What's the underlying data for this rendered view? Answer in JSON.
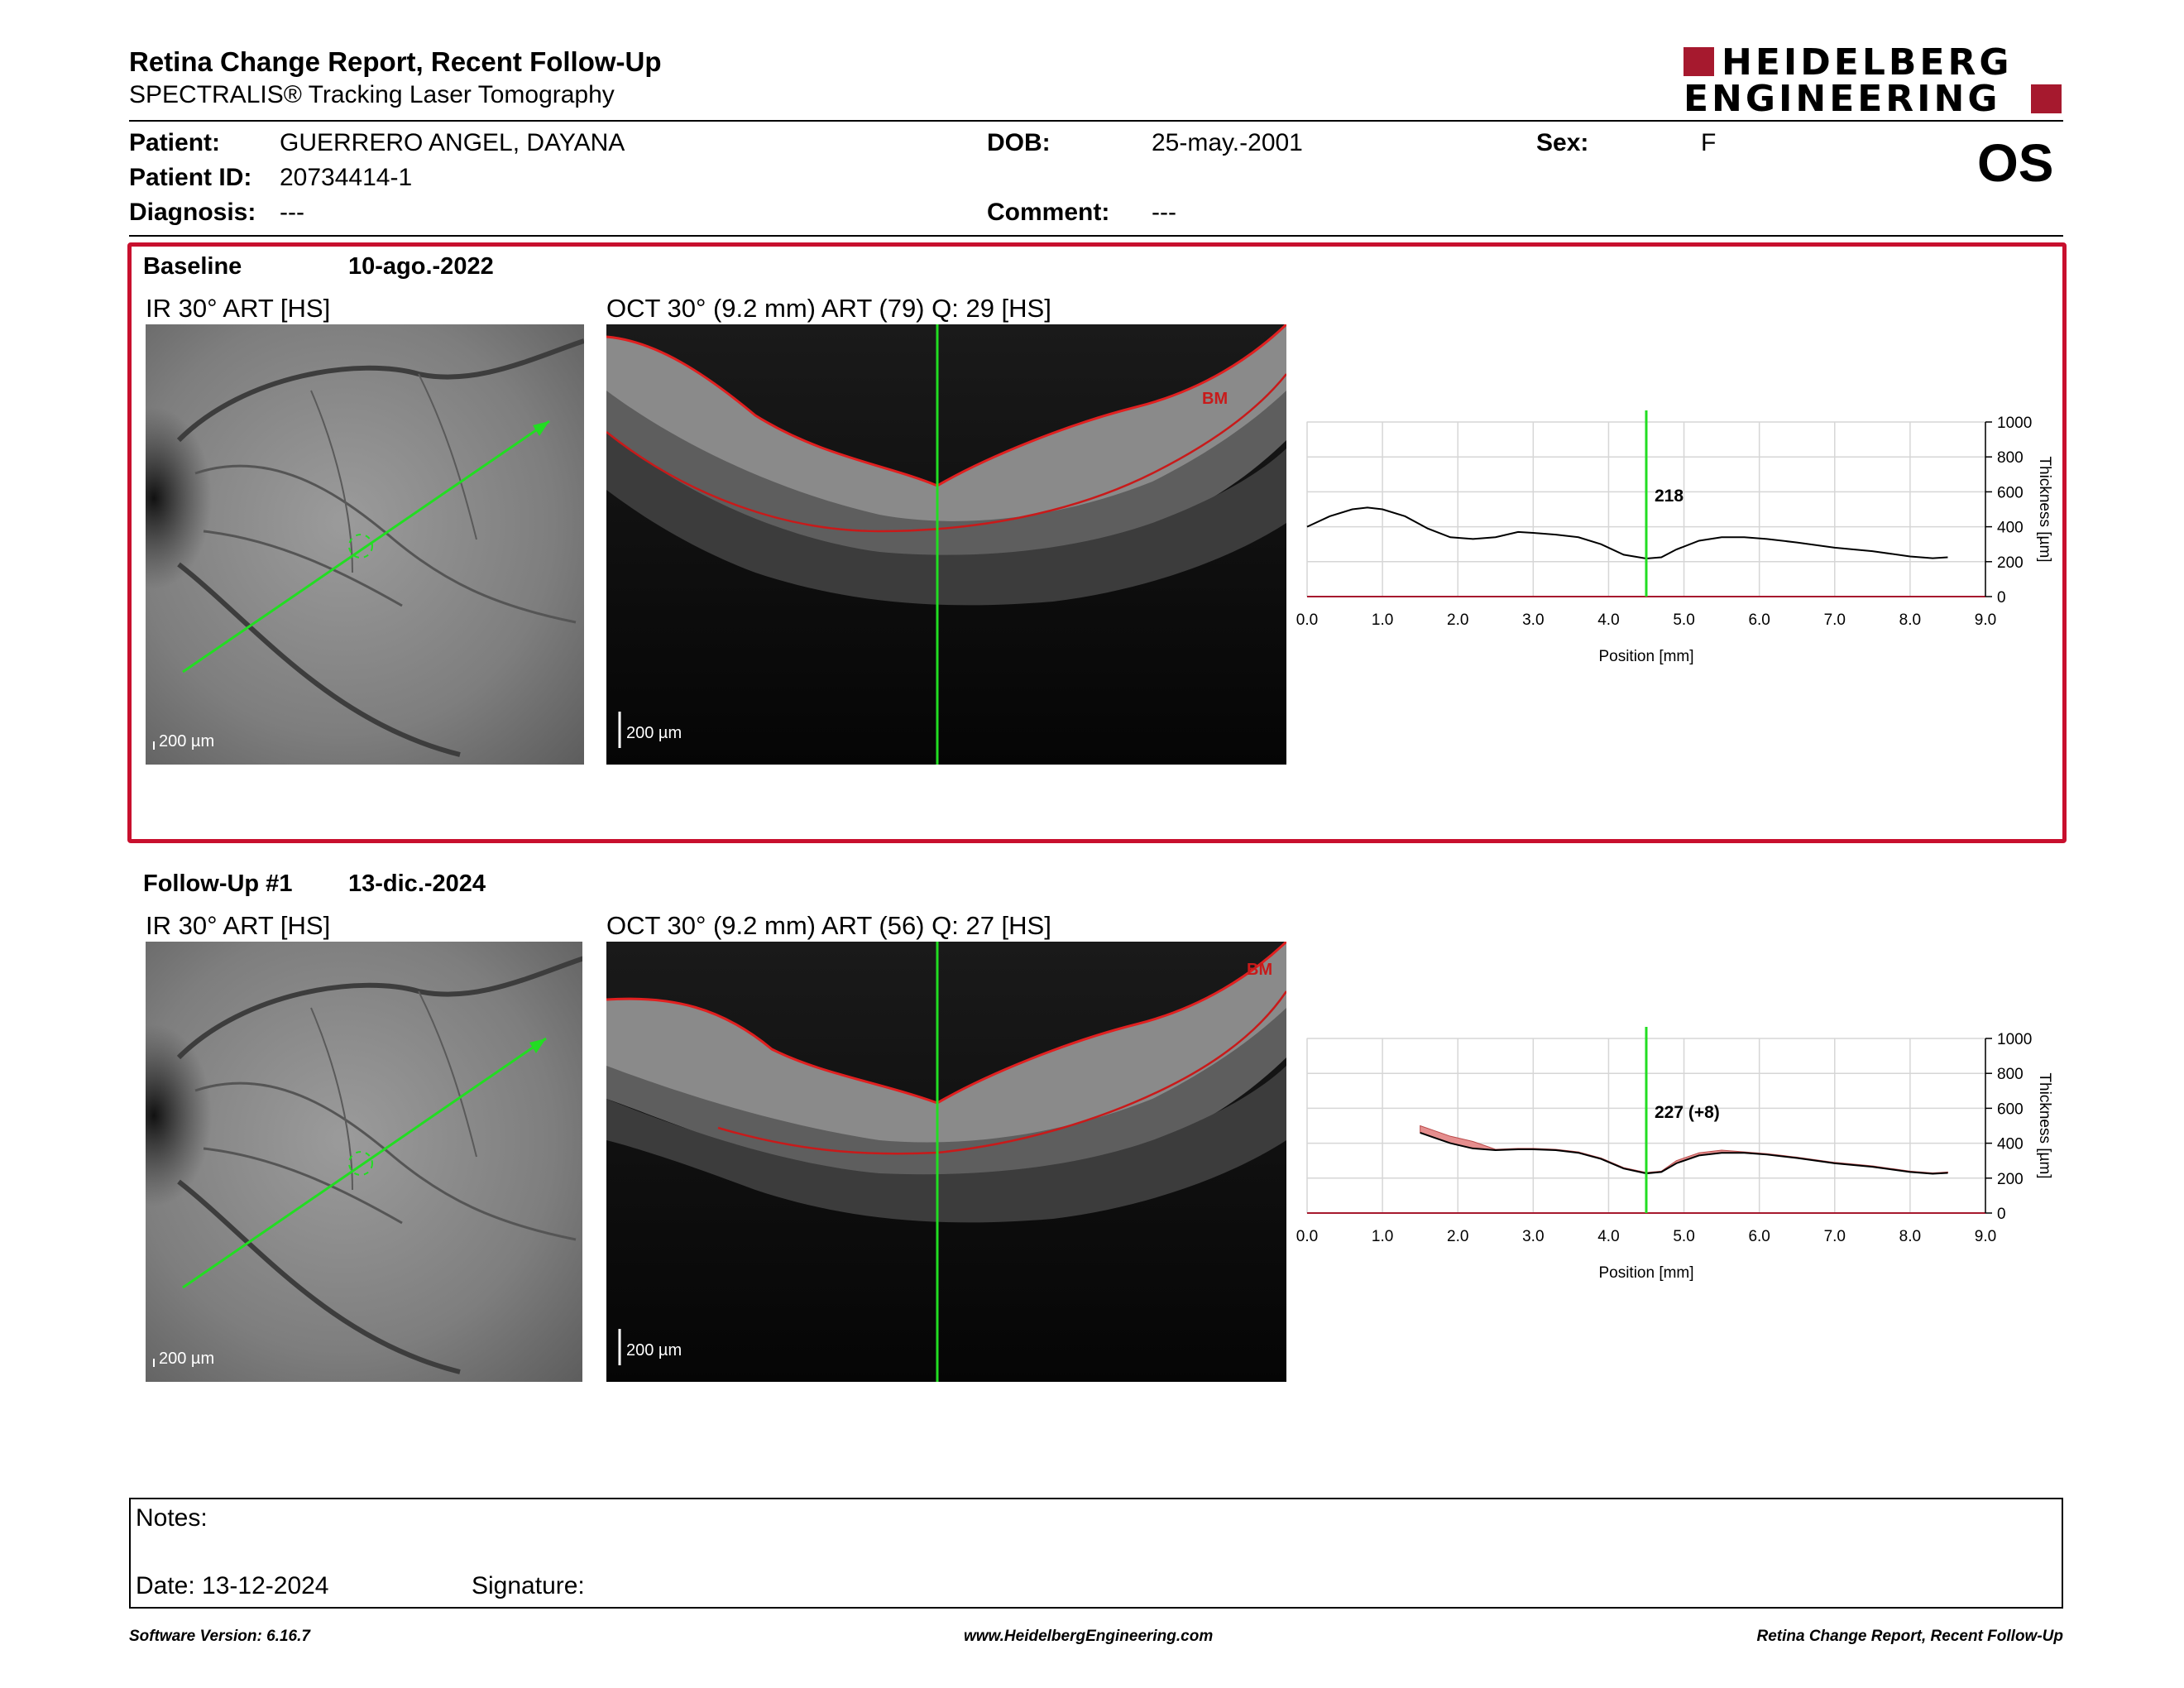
{
  "header": {
    "title": "Retina Change Report, Recent Follow-Up",
    "subtitle": "SPECTRALIS® Tracking Laser Tomography",
    "logo_line1": "HEIDELBERG",
    "logo_line2": "ENGINEERING",
    "brand_color": "#a6192e",
    "eye": "OS"
  },
  "patient": {
    "patient_label": "Patient:",
    "patient_name": "GUERRERO ANGEL, DAYANA",
    "id_label": "Patient ID:",
    "id_value": "20734414-1",
    "diagnosis_label": "Diagnosis:",
    "diagnosis_value": "---",
    "dob_label": "DOB:",
    "dob_value": "25-may.-2001",
    "comment_label": "Comment:",
    "comment_value": "---",
    "sex_label": "Sex:",
    "sex_value": "F"
  },
  "baseline": {
    "label": "Baseline",
    "date": "10-ago.-2022",
    "ir_caption": "IR 30° ART [HS]",
    "oct_caption": "OCT 30° (9.2 mm) ART (79) Q: 29 [HS]",
    "scale_ir": "200 µm",
    "scale_oct": "200 µm",
    "bm_label": "BM",
    "frame_color": "#c8102e"
  },
  "followup": {
    "label": "Follow-Up #1",
    "date": "13-dic.-2024",
    "ir_caption": "IR 30° ART [HS]",
    "oct_caption": "OCT 30° (9.2 mm) ART (56) Q: 27 [HS]",
    "scale_ir": "200 µm",
    "scale_oct": "200 µm",
    "bm_label": "BM"
  },
  "chart_data": [
    {
      "type": "line",
      "xlabel": "Position [mm]",
      "ylabel": "Thickness [µm]",
      "xlim": [
        0,
        9
      ],
      "ylim": [
        0,
        1000
      ],
      "x_ticks": [
        "0.0",
        "1.0",
        "2.0",
        "3.0",
        "4.0",
        "5.0",
        "6.0",
        "7.0",
        "8.0",
        "9.0"
      ],
      "y_ticks": [
        "0",
        "200",
        "400",
        "600",
        "800",
        "1000"
      ],
      "grid": true,
      "marker_x": 4.5,
      "marker_label": "218",
      "series": [
        {
          "x": [
            0.0,
            0.3,
            0.6,
            0.8,
            1.0,
            1.3,
            1.6,
            1.9,
            2.2,
            2.5,
            2.8,
            3.0,
            3.3,
            3.6,
            3.9,
            4.2,
            4.5,
            4.7,
            4.9,
            5.2,
            5.5,
            5.8,
            6.1,
            6.5,
            7.0,
            7.5,
            8.0,
            8.3,
            8.5
          ],
          "y": [
            400,
            460,
            500,
            510,
            500,
            460,
            390,
            340,
            330,
            340,
            370,
            365,
            355,
            340,
            300,
            240,
            218,
            225,
            270,
            320,
            340,
            340,
            330,
            310,
            280,
            260,
            230,
            220,
            225
          ]
        }
      ]
    },
    {
      "type": "area",
      "xlabel": "Position [mm]",
      "ylabel": "Thickness [µm]",
      "xlim": [
        0,
        9
      ],
      "ylim": [
        0,
        1000
      ],
      "x_ticks": [
        "0.0",
        "1.0",
        "2.0",
        "3.0",
        "4.0",
        "5.0",
        "6.0",
        "7.0",
        "8.0",
        "9.0"
      ],
      "y_ticks": [
        "0",
        "200",
        "400",
        "600",
        "800",
        "1000"
      ],
      "grid": true,
      "marker_x": 4.5,
      "marker_label": "227 (+8)",
      "difference_color": "#e58e8e",
      "series": [
        {
          "x": [
            1.5,
            1.7,
            1.9,
            2.2,
            2.5,
            2.8,
            3.0,
            3.3,
            3.6,
            3.9,
            4.2,
            4.5,
            4.7,
            4.9,
            5.2,
            5.5,
            5.8,
            6.1,
            6.5,
            7.0,
            7.5,
            8.0,
            8.3,
            8.5
          ],
          "y": [
            460,
            430,
            400,
            370,
            360,
            365,
            365,
            360,
            345,
            310,
            255,
            227,
            235,
            285,
            330,
            345,
            345,
            335,
            315,
            285,
            265,
            235,
            225,
            230
          ]
        }
      ]
    }
  ],
  "notes": {
    "notes_label": "Notes:",
    "date_label": "Date: 13-12-2024",
    "signature_label": "Signature:"
  },
  "footer": {
    "left": "Software Version: 6.16.7",
    "center": "www.HeidelbergEngineering.com",
    "right": "Retina Change Report, Recent Follow-Up"
  }
}
